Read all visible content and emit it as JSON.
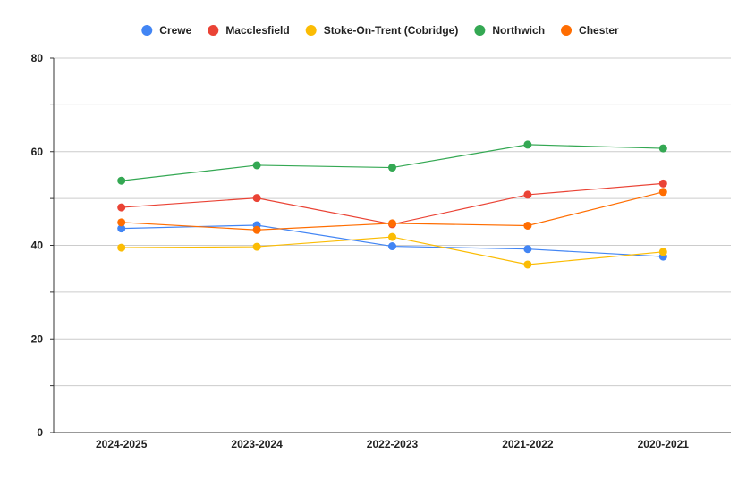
{
  "chart_data": {
    "type": "line",
    "title": "",
    "xlabel": "",
    "ylabel": "",
    "categories": [
      "2024-2025",
      "2023-2024",
      "2022-2023",
      "2021-2022",
      "2020-2021"
    ],
    "ylim": [
      0,
      80
    ],
    "yticks": [
      0,
      20,
      40,
      60,
      80
    ],
    "grid": true,
    "legend_position": "top",
    "series": [
      {
        "name": "Crewe",
        "color": "#4285f4",
        "values": [
          43.6,
          44.3,
          39.8,
          39.2,
          37.6
        ]
      },
      {
        "name": "Macclesfield",
        "color": "#ea4335",
        "values": [
          48.1,
          50.1,
          44.5,
          50.8,
          53.2
        ]
      },
      {
        "name": "Stoke-On-Trent (Cobridge)",
        "color": "#fbbc04",
        "values": [
          39.5,
          39.7,
          41.8,
          35.9,
          38.6
        ]
      },
      {
        "name": "Northwich",
        "color": "#34a853",
        "values": [
          53.8,
          57.1,
          56.6,
          61.5,
          60.7
        ]
      },
      {
        "name": "Chester",
        "color": "#ff6d01",
        "values": [
          44.9,
          43.3,
          44.7,
          44.2,
          51.4
        ]
      }
    ]
  }
}
